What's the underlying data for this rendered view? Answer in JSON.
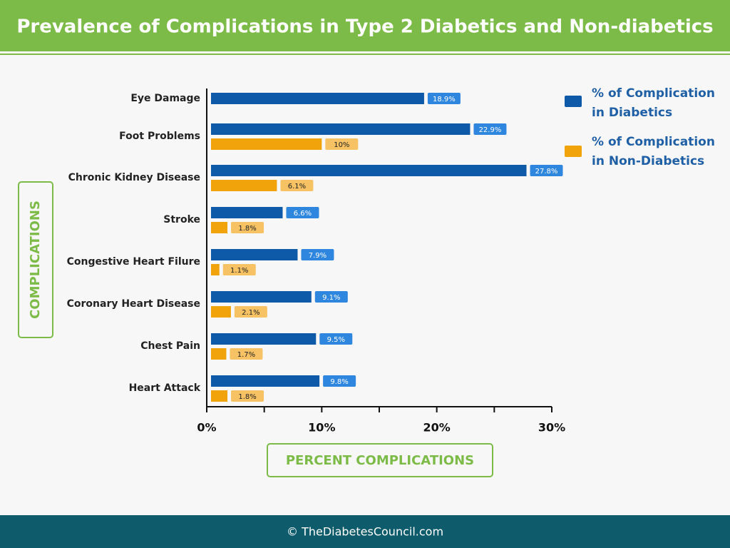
{
  "chart_data": {
    "type": "hbar",
    "title": "Prevalence of Complications in Type 2 Diabetics and Non-diabetics",
    "x_label": "PERCENT COMPLICATIONS",
    "y_label": "COMPLICATIONS",
    "categories": [
      "Eye Damage",
      "Foot Problems",
      "Chronic Kidney Disease",
      "Stroke",
      "Congestive Heart Filure",
      "Coronary Heart Disease",
      "Chest Pain",
      "Heart Attack"
    ],
    "series": [
      {
        "name": "% of Complication in Diabetics",
        "color": "#0f5aa8",
        "label_color": "#2e86de",
        "values": [
          18.9,
          22.9,
          27.8,
          6.6,
          7.9,
          9.1,
          9.5,
          9.8
        ],
        "value_labels": [
          "18.9%",
          "22.9%",
          "27.8%",
          "6.6%",
          "7.9%",
          "9.1%",
          "9.5%",
          "9.8%"
        ]
      },
      {
        "name": "% of Complication in Non-Diabetics",
        "color": "#f0a30a",
        "label_color": "#f6c263",
        "values": [
          null,
          10,
          6.1,
          1.8,
          1.1,
          2.1,
          1.7,
          1.8
        ],
        "value_labels": [
          null,
          "10%",
          "6.1%",
          "1.8%",
          "1.1%",
          "2.1%",
          "1.7%",
          "1.8%"
        ]
      }
    ],
    "xlim": [
      0,
      30
    ],
    "xticks": [
      {
        "value": 0,
        "label": "0%"
      },
      {
        "value": 10,
        "label": "10%"
      },
      {
        "value": 20,
        "label": "20%"
      },
      {
        "value": 30,
        "label": "30%"
      }
    ],
    "minor_xticks": [
      5,
      15,
      25
    ],
    "legend": "top-right"
  },
  "footer": "© TheDiabetesCouncil.com"
}
